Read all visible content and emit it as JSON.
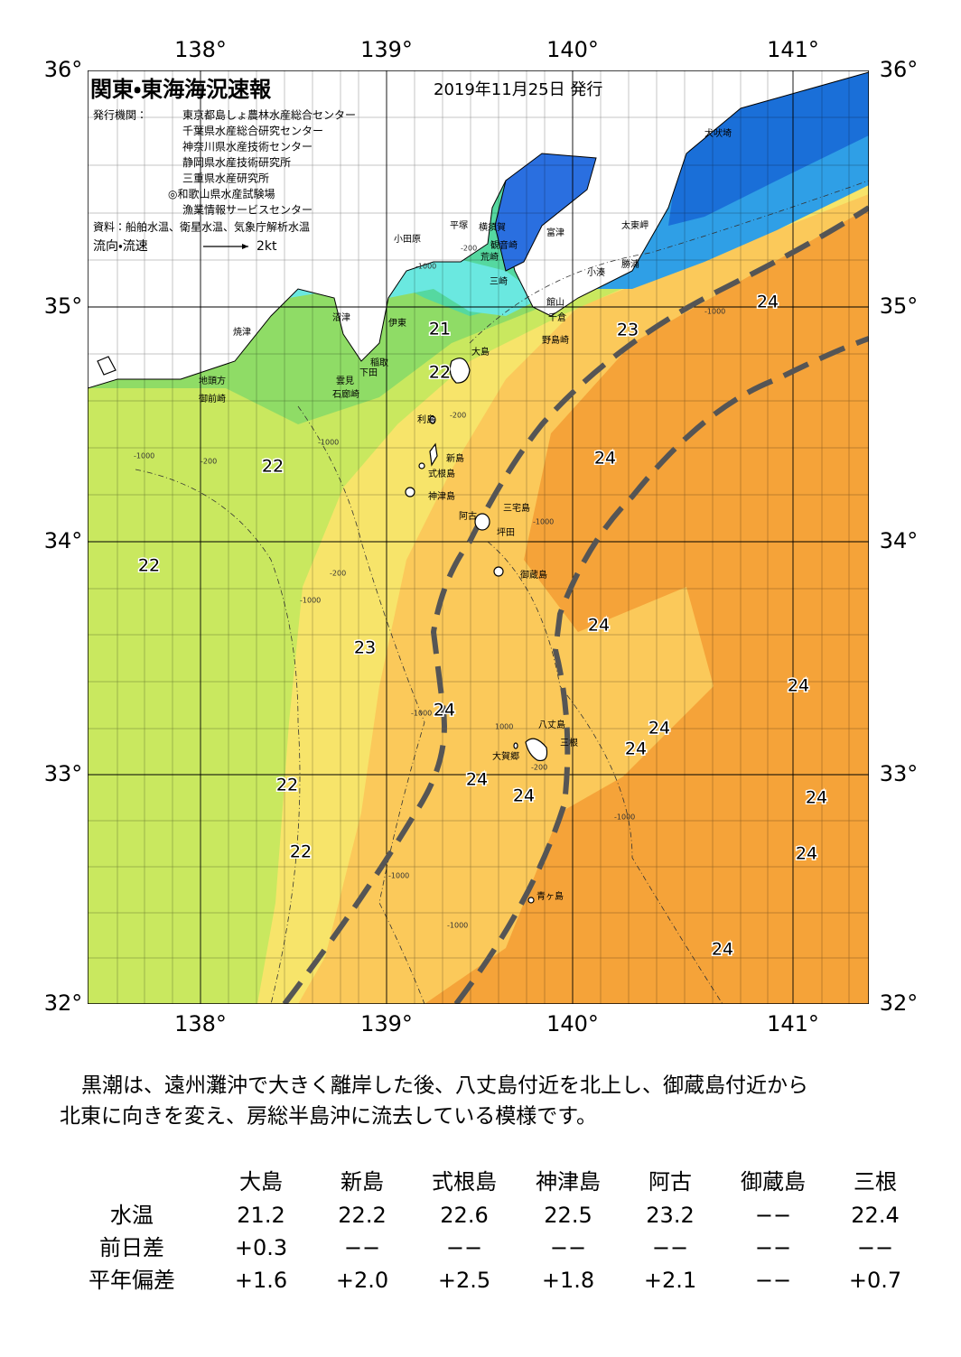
{
  "map": {
    "title": "関東・東海海況速報",
    "date": "2019年11月25日 発行",
    "publisher_label": "発行機関：",
    "publishers": [
      "東京都島しょ農林水産総合センター",
      "千葉県水産総合研究センター",
      "神奈川県水産技術センター",
      "静岡県水産技術研究所",
      "三重県水産研究所",
      "◎和歌山県水産試験場",
      "漁業情報サービスセンター"
    ],
    "source": "資料：船舶水温、衛星水温、気象庁解析水温",
    "legend_label": "流向・流速",
    "legend_speed": "2kt",
    "lon_labels": [
      "138°",
      "139°",
      "140°",
      "141°"
    ],
    "lat_labels": [
      "36°",
      "35°",
      "34°",
      "33°",
      "32°"
    ],
    "place_names": [
      "犬吠埼",
      "太東岬",
      "勝浦",
      "小湊",
      "富津",
      "横須賀",
      "観音崎",
      "荒崎",
      "三崎",
      "平塚",
      "小田原",
      "館山",
      "千倉",
      "野島崎",
      "沼津",
      "伊東",
      "焼津",
      "大島",
      "稲取",
      "下田",
      "雲見",
      "石廊崎",
      "地頭方",
      "御前崎",
      "利島",
      "新島",
      "式根島",
      "神津島",
      "三宅島",
      "阿古",
      "坪田",
      "御蔵島",
      "八丈島",
      "三根",
      "大賀郷",
      "青ヶ島"
    ],
    "temperature_labels": [
      "21",
      "22",
      "23",
      "24",
      "24",
      "22",
      "22",
      "24",
      "23",
      "24",
      "24",
      "24",
      "24",
      "22",
      "24",
      "24",
      "24",
      "22",
      "24",
      "24"
    ],
    "depth_labels": [
      "-1000",
      "-200",
      "-1000",
      "-200",
      "-1000",
      "-1000",
      "1000",
      "-1000",
      "-1000",
      "-1000",
      "-200",
      "-1000",
      "-1000",
      "-200",
      "-200",
      "-1000"
    ]
  },
  "description": [
    "黒潮は、遠州灘沖で大きく離岸した後、八丈島付近を北上し、御蔵島付近から",
    "北東に向きを変え、房総半島沖に流去している模様です。"
  ],
  "table": {
    "columns": [
      "大島",
      "新島",
      "式根島",
      "神津島",
      "阿古",
      "御蔵島",
      "三根"
    ],
    "rows": [
      {
        "label": "水温",
        "values": [
          "21.2",
          "22.2",
          "22.6",
          "22.5",
          "23.2",
          "−−",
          "22.4"
        ]
      },
      {
        "label": "前日差",
        "values": [
          "+0.3",
          "−−",
          "−−",
          "−−",
          "−−",
          "−−",
          "−−"
        ]
      },
      {
        "label": "平年偏差",
        "values": [
          "+1.6",
          "+2.0",
          "+2.5",
          "+1.8",
          "+2.1",
          "−−",
          "+0.7"
        ]
      }
    ]
  }
}
